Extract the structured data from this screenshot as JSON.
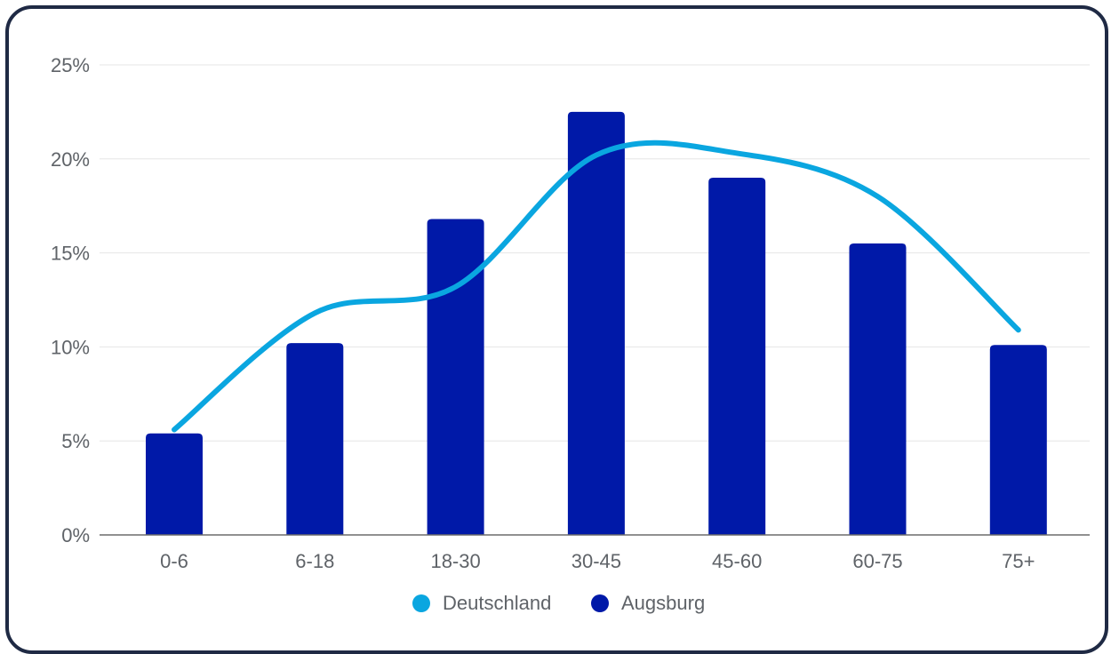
{
  "chart_data": {
    "type": "bar",
    "categories": [
      "0-6",
      "6-18",
      "18-30",
      "30-45",
      "45-60",
      "60-75",
      "75+"
    ],
    "series": [
      {
        "name": "Augsburg",
        "type": "bar",
        "color": "#0019a8",
        "values": [
          5.4,
          10.2,
          16.8,
          22.5,
          19.0,
          15.5,
          10.1
        ]
      },
      {
        "name": "Deutschland",
        "type": "line",
        "color": "#0aa6e0",
        "values": [
          5.6,
          11.8,
          13.2,
          20.2,
          20.3,
          18.0,
          10.9
        ]
      }
    ],
    "ylim": [
      0,
      25
    ],
    "yticks": [
      "0%",
      "5%",
      "10%",
      "15%",
      "20%",
      "25%"
    ],
    "ytick_values": [
      0,
      5,
      10,
      15,
      20,
      25
    ],
    "grid": true,
    "legend": {
      "placement": "bottom",
      "entries": [
        "Deutschland",
        "Augsburg"
      ]
    }
  }
}
